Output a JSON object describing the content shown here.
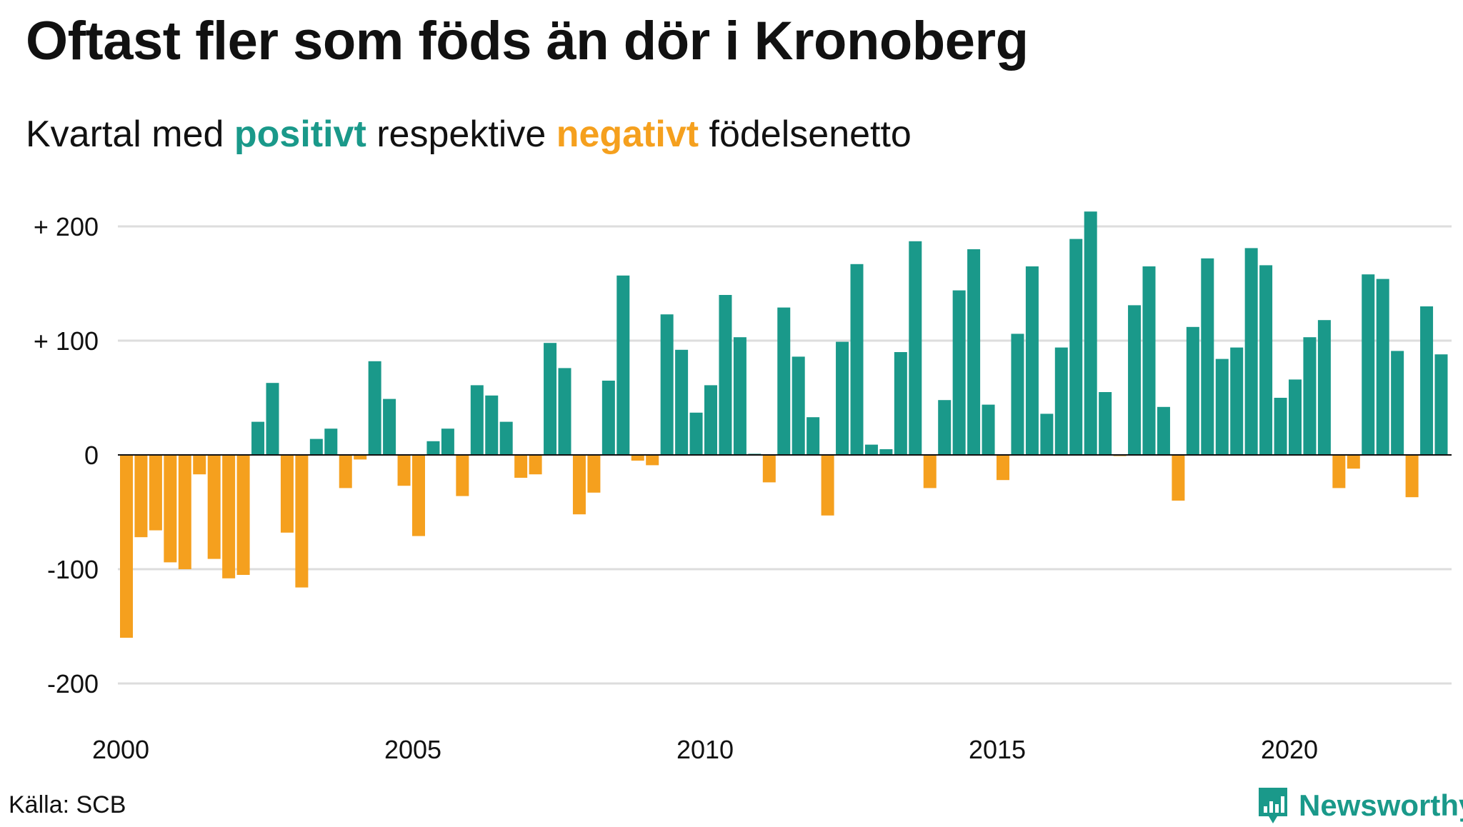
{
  "header": {
    "title": "Oftast fler som föds än dör i Kronoberg",
    "subtitle_pre": "Kvartal med ",
    "subtitle_pos": "positivt",
    "subtitle_mid": " respektive ",
    "subtitle_neg": "negativt",
    "subtitle_post": " födelsenetto"
  },
  "footer": {
    "source": "Källa: SCB",
    "brand": "Newsworthy",
    "brand_icon": "bar-chart-logo-icon"
  },
  "colors": {
    "positive": "#1a998a",
    "negative": "#f5a01e",
    "grid": "#dddddd",
    "axis": "#111111"
  },
  "chart_data": {
    "type": "bar",
    "title": "Oftast fler som föds än dör i Kronoberg",
    "subtitle": "Kvartal med positivt respektive negativt födelsenetto",
    "xlabel": "",
    "ylabel": "",
    "ylim": [
      -200,
      200
    ],
    "yticks": [
      {
        "value": 200,
        "label": "+ 200"
      },
      {
        "value": 100,
        "label": "+ 100"
      },
      {
        "value": 0,
        "label": "0"
      },
      {
        "value": -100,
        "label": "-100"
      },
      {
        "value": -200,
        "label": "-200"
      }
    ],
    "xticks": [
      {
        "year": 2000,
        "label": "2000"
      },
      {
        "year": 2005,
        "label": "2005"
      },
      {
        "year": 2010,
        "label": "2010"
      },
      {
        "year": 2015,
        "label": "2015"
      },
      {
        "year": 2020,
        "label": "2020"
      }
    ],
    "grid": true,
    "start": "2000 Q1",
    "values": [
      -160,
      -72,
      -66,
      -94,
      -100,
      -17,
      -91,
      -108,
      -105,
      29,
      63,
      -68,
      -116,
      14,
      23,
      -29,
      -4,
      82,
      49,
      -27,
      -71,
      12,
      23,
      -36,
      61,
      52,
      29,
      -20,
      -17,
      98,
      76,
      -52,
      -33,
      65,
      157,
      -5,
      -9,
      123,
      92,
      37,
      61,
      140,
      103,
      1,
      -24,
      129,
      86,
      33,
      -53,
      99,
      167,
      9,
      5,
      90,
      187,
      -29,
      48,
      144,
      180,
      44,
      -22,
      106,
      165,
      36,
      94,
      189,
      213,
      55,
      -1,
      131,
      165,
      42,
      -40,
      112,
      172,
      84,
      94,
      181,
      166,
      50,
      66,
      103,
      118,
      -29,
      -12,
      158,
      154,
      91,
      -37,
      130,
      88
    ]
  }
}
